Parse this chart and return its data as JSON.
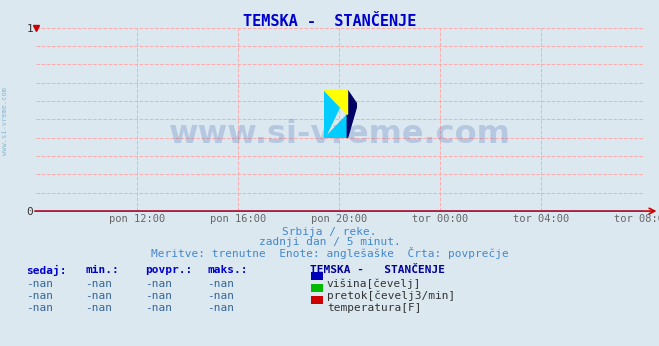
{
  "title": "TEMSKA -  STANČENJE",
  "title_color": "#0000cc",
  "bg_color": "#dce8f0",
  "plot_bg_color": "#dce8f0",
  "grid_color": "#ffaaaa",
  "axis_color": "#cc0000",
  "x_axis_color": "#3333cc",
  "yticks": [
    0,
    1
  ],
  "ylim": [
    0,
    1
  ],
  "xlim": [
    0,
    288
  ],
  "xtick_labels": [
    "pon 12:00",
    "pon 16:00",
    "pon 20:00",
    "tor 00:00",
    "tor 04:00",
    "tor 08:00"
  ],
  "xtick_positions": [
    48,
    96,
    144,
    192,
    240,
    288
  ],
  "subtitle1": "Srbija / reke.",
  "subtitle2": "zadnji dan / 5 minut.",
  "subtitle3": "Meritve: trenutne  Enote: anglešaške  Črta: povprečje",
  "subtitle_color": "#4488cc",
  "watermark_text": "www.si-vreme.com",
  "watermark_color": "#3355aa",
  "watermark_alpha": 0.22,
  "left_label": "www.si-vreme.com",
  "left_label_color": "#7ab0cc",
  "legend_title": "TEMSKA -   STANČENJE",
  "legend_title_color": "#000099",
  "legend_items": [
    {
      "label": "višina[čevelj]",
      "color": "#0000bb"
    },
    {
      "label": "pretok[čevelj3/min]",
      "color": "#00bb00"
    },
    {
      "label": "temperatura[F]",
      "color": "#cc0000"
    }
  ],
  "table_headers": [
    "sedaj:",
    "min.:",
    "povpr.:",
    "maks.:"
  ],
  "table_values": [
    "-nan",
    "-nan",
    "-nan",
    "-nan"
  ],
  "table_header_color": "#0000cc",
  "table_value_color": "#336699",
  "figsize": [
    6.59,
    3.46
  ],
  "dpi": 100
}
